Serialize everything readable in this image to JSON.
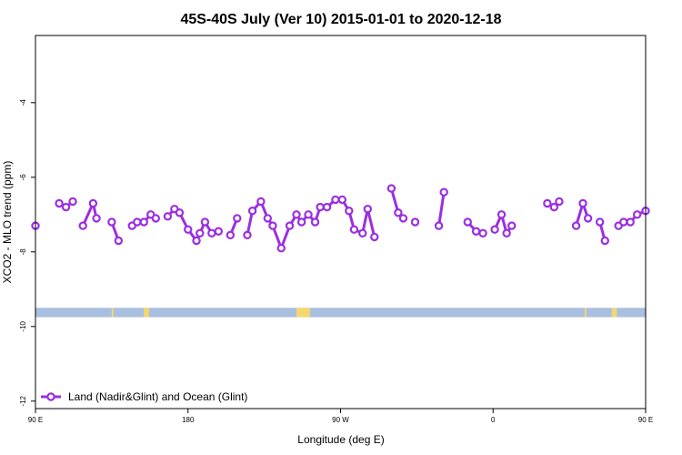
{
  "chart_data": {
    "type": "line",
    "title": "45S-40S July (Ver 10)   2015-01-01 to 2020-12-18",
    "xlabel": "Longitude (deg E)",
    "ylabel": "XCO2 - MLO trend (ppm)",
    "xlim": [
      90,
      450
    ],
    "ylim": [
      -12.2,
      -2.2
    ],
    "x_ticks": [
      {
        "value": 90,
        "label": "90 E"
      },
      {
        "value": 180,
        "label": "180"
      },
      {
        "value": 270,
        "label": "90 W"
      },
      {
        "value": 360,
        "label": "0"
      },
      {
        "value": 450,
        "label": "90 E"
      }
    ],
    "y_ticks": [
      {
        "value": -4,
        "label": "-4"
      },
      {
        "value": -6,
        "label": "-6"
      },
      {
        "value": -8,
        "label": "-8"
      },
      {
        "value": -10,
        "label": "-10"
      },
      {
        "value": -12,
        "label": "-12"
      }
    ],
    "grid": false,
    "legend_position": "bottom-left",
    "land_ocean_strip": {
      "y_range": [
        -9.75,
        -9.5
      ],
      "ocean_color": "#a9bfe0",
      "land_color": "#f5d76e",
      "land_spans": [
        [
          135,
          136
        ],
        [
          154,
          157
        ],
        [
          244,
          252
        ],
        [
          414,
          415
        ],
        [
          430,
          433
        ]
      ]
    },
    "series": [
      {
        "name": "Land (Nadir&Glint) and Ocean (Glint)",
        "color": "#9b2fe0",
        "segments": [
          [
            [
              90,
              -7.3
            ]
          ],
          [
            [
              104,
              -6.7
            ],
            [
              108,
              -6.8
            ],
            [
              112,
              -6.65
            ]
          ],
          [
            [
              118,
              -7.3
            ],
            [
              124,
              -6.7
            ],
            [
              126,
              -7.1
            ]
          ],
          [
            [
              135,
              -7.2
            ],
            [
              139,
              -7.7
            ]
          ],
          [
            [
              147,
              -7.3
            ],
            [
              150,
              -7.2
            ],
            [
              154,
              -7.2
            ],
            [
              158,
              -7.0
            ],
            [
              161,
              -7.1
            ]
          ],
          [
            [
              168,
              -7.05
            ],
            [
              172,
              -6.85
            ],
            [
              175,
              -6.95
            ],
            [
              180,
              -7.4
            ],
            [
              185,
              -7.7
            ],
            [
              187,
              -7.5
            ],
            [
              190,
              -7.2
            ],
            [
              194,
              -7.5
            ],
            [
              198,
              -7.45
            ]
          ],
          [
            [
              205,
              -7.55
            ],
            [
              209,
              -7.1
            ]
          ],
          [
            [
              215,
              -7.55
            ],
            [
              218,
              -6.9
            ],
            [
              223,
              -6.65
            ],
            [
              227,
              -7.1
            ],
            [
              230,
              -7.3
            ],
            [
              235,
              -7.9
            ],
            [
              240,
              -7.3
            ],
            [
              244,
              -7.0
            ],
            [
              247,
              -7.2
            ],
            [
              251,
              -7.0
            ],
            [
              255,
              -7.2
            ],
            [
              258,
              -6.8
            ],
            [
              262,
              -6.8
            ],
            [
              267,
              -6.6
            ],
            [
              271,
              -6.6
            ],
            [
              275,
              -6.9
            ],
            [
              278,
              -7.4
            ],
            [
              283,
              -7.5
            ],
            [
              286,
              -6.85
            ],
            [
              290,
              -7.6
            ]
          ],
          [
            [
              300,
              -6.3
            ],
            [
              304,
              -6.95
            ],
            [
              307,
              -7.1
            ]
          ],
          [
            [
              314,
              -7.2
            ]
          ],
          [
            [
              328,
              -7.3
            ],
            [
              331,
              -6.4
            ]
          ],
          [
            [
              345,
              -7.2
            ],
            [
              350,
              -7.45
            ],
            [
              354,
              -7.5
            ]
          ],
          [
            [
              361,
              -7.4
            ],
            [
              365,
              -7.0
            ],
            [
              368,
              -7.5
            ],
            [
              371,
              -7.3
            ]
          ],
          [
            [
              392,
              -6.7
            ],
            [
              396,
              -6.8
            ],
            [
              399,
              -6.65
            ]
          ],
          [
            [
              409,
              -7.3
            ],
            [
              413,
              -6.7
            ],
            [
              416,
              -7.1
            ]
          ],
          [
            [
              423,
              -7.2
            ],
            [
              426,
              -7.7
            ]
          ],
          [
            [
              434,
              -7.3
            ],
            [
              437,
              -7.2
            ],
            [
              441,
              -7.2
            ],
            [
              445,
              -7.0
            ],
            [
              450,
              -6.9
            ]
          ]
        ]
      }
    ]
  }
}
